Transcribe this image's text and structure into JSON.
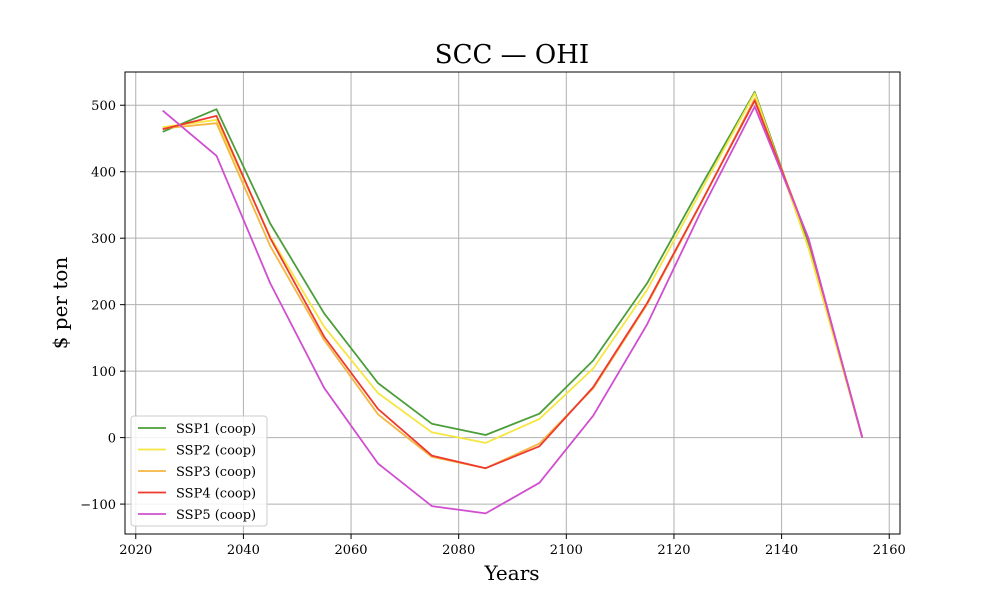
{
  "chart_data": {
    "type": "line",
    "title": "SCC — OHI",
    "xlabel": "Years",
    "ylabel": "$ per ton",
    "xlim": [
      2018,
      2162
    ],
    "ylim": [
      -145,
      550
    ],
    "x_ticks": [
      2020,
      2040,
      2060,
      2080,
      2100,
      2120,
      2140,
      2160
    ],
    "y_ticks": [
      -100,
      0,
      100,
      200,
      300,
      400,
      500
    ],
    "x_tick_labels": [
      "2020",
      "2040",
      "2060",
      "2080",
      "2100",
      "2120",
      "2140",
      "2160"
    ],
    "y_tick_labels": [
      "−100",
      "0",
      "100",
      "200",
      "300",
      "400",
      "500"
    ],
    "grid": true,
    "legend_position": "lower-left",
    "x": [
      2025,
      2035,
      2045,
      2055,
      2065,
      2075,
      2085,
      2095,
      2105,
      2115,
      2125,
      2135,
      2145,
      2155
    ],
    "series": [
      {
        "name": "SSP1 (coop)",
        "color": "#4c9e3a",
        "values": [
          460,
          494,
          322,
          187,
          82,
          21,
          4,
          36,
          116,
          232,
          378,
          520,
          290,
          0
        ]
      },
      {
        "name": "SSP2 (coop)",
        "color": "#f5e642",
        "values": [
          467,
          478,
          302,
          167,
          67,
          8,
          -8,
          28,
          104,
          222,
          371,
          518,
          285,
          0
        ]
      },
      {
        "name": "SSP3 (coop)",
        "color": "#f5b642",
        "values": [
          465,
          473,
          288,
          147,
          35,
          -29,
          -46,
          -9,
          74,
          200,
          352,
          510,
          298,
          0
        ]
      },
      {
        "name": "SSP4 (coop)",
        "color": "#ee3a2e",
        "values": [
          464,
          484,
          300,
          152,
          43,
          -27,
          -46,
          -13,
          76,
          202,
          353,
          507,
          298,
          0
        ]
      },
      {
        "name": "SSP5 (coop)",
        "color": "#d04fd0",
        "values": [
          492,
          424,
          232,
          75,
          -39,
          -103,
          -114,
          -68,
          33,
          170,
          340,
          498,
          300,
          0
        ]
      }
    ]
  }
}
